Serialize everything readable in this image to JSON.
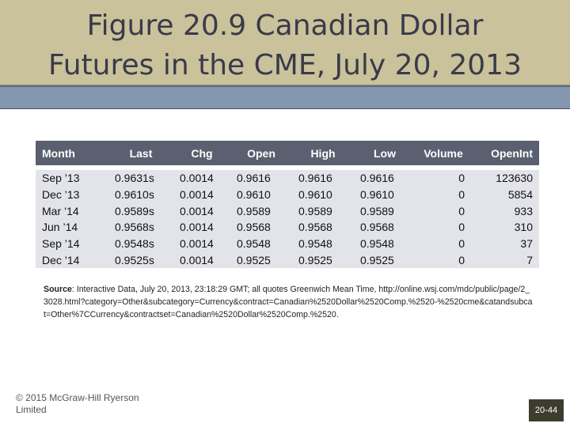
{
  "slide": {
    "title_line1": "Figure 20.9 Canadian Dollar",
    "title_line2": "Futures in the CME, July 20, 2013"
  },
  "table": {
    "headers": [
      "Month",
      "Last",
      "Chg",
      "Open",
      "High",
      "Low",
      "Volume",
      "OpenInt"
    ],
    "rows": [
      [
        "Sep ’13",
        "0.9631s",
        "0.0014",
        "0.9616",
        "0.9616",
        "0.9616",
        "0",
        "123630"
      ],
      [
        "Dec ’13",
        "0.9610s",
        "0.0014",
        "0.9610",
        "0.9610",
        "0.9610",
        "0",
        "5854"
      ],
      [
        "Mar ’14",
        "0.9589s",
        "0.0014",
        "0.9589",
        "0.9589",
        "0.9589",
        "0",
        "933"
      ],
      [
        "Jun ’14",
        "0.9568s",
        "0.0014",
        "0.9568",
        "0.9568",
        "0.9568",
        "0",
        "310"
      ],
      [
        "Sep ’14",
        "0.9548s",
        "0.0014",
        "0.9548",
        "0.9548",
        "0.9548",
        "0",
        "37"
      ],
      [
        "Dec ’14",
        "0.9525s",
        "0.0014",
        "0.9525",
        "0.9525",
        "0.9525",
        "0",
        "7"
      ]
    ]
  },
  "source": {
    "label": "Source",
    "text": ": Interactive Data, July 20, 2013, 23:18:29 GMT; all quotes Greenwich Mean Time, http://online.wsj.com/mdc/public/page/2_3028.html?category=Other&subcategory=Currency&contract=Canadian%2520Dollar%2520Comp.%2520-%2520cme&catandsubcat=Other%7CCurrency&contractset=Canadian%2520Dollar%2520Comp.%2520."
  },
  "footer": {
    "copyright": "© 2015 McGraw-Hill Ryerson Limited",
    "page_number": "20-44"
  }
}
